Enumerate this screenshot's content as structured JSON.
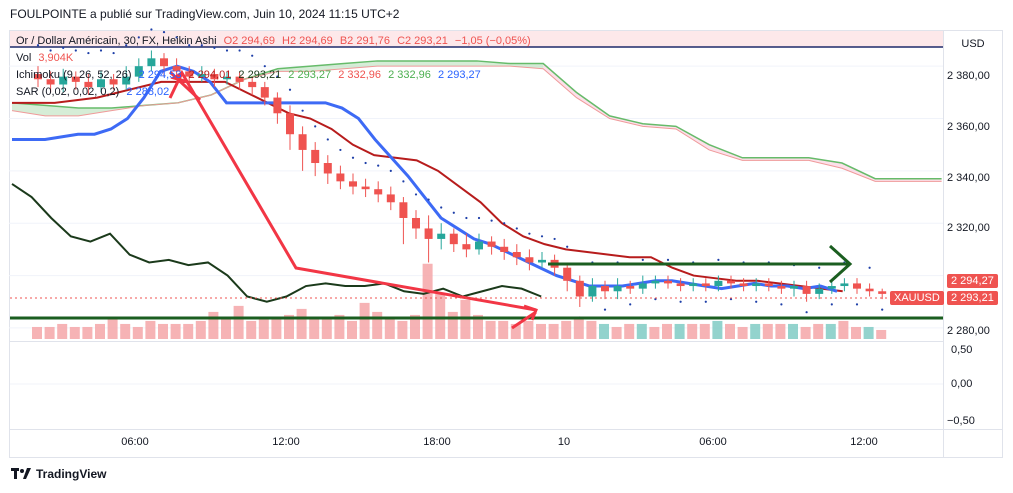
{
  "publisher_caption": "FOULPOINTE a publié sur TradingView.com, Juin 10, 2024 11:15 UTC+2",
  "currency": "USD",
  "legend": {
    "symbol": "Or / Dollar Américain, 30, FX, Heikin Ashi",
    "ohlc": {
      "o": "O2 294,69",
      "h": "H2 294,69",
      "b": "B2 291,76",
      "c": "C2 293,21",
      "chg": "−1,05 (−0,05%)"
    },
    "vol_label": "Vol",
    "vol_value": "3,904K",
    "ichimoku_label": "Ichimoku (9, 26, 52, 26)",
    "ichimoku_values": [
      "2 294,53",
      "2 294,01",
      "2 293,21",
      "2 293,27",
      "2 332,96",
      "2 332,96",
      "2 293,27"
    ],
    "sar_label": "SAR (0,02, 0,02, 0,2)",
    "sar_value": "2 288,02"
  },
  "price_axis": [
    "2 380,00",
    "2 360,00",
    "2 340,00",
    "2 320,00",
    "2 280,00"
  ],
  "osc_axis": [
    "0,50",
    "0,00",
    "−0,50"
  ],
  "last_price": {
    "symbol": "XAUUSD",
    "value": "2 293,21",
    "other": "2 294,27"
  },
  "time_axis": [
    "06:00",
    "12:00",
    "18:00",
    "10",
    "06:00",
    "12:00"
  ],
  "colors": {
    "bull": "#26a69a",
    "bear": "#ef5350",
    "tenkan": "#2962ff",
    "kijun": "#b71c1c",
    "lagging": "#1b3a1b",
    "cloud_up": "#a5d6a7",
    "cloud_dn": "#f8bbd0",
    "sar": "#1e3fa8",
    "annot_red": "#f23645",
    "annot_green": "#1b5e20"
  },
  "footer_brand": "TradingView",
  "chart_data": {
    "type": "candlestick",
    "ylim": [
      2275,
      2390
    ],
    "candles": [
      {
        "o": 2377,
        "c": 2375,
        "h": 2380,
        "l": 2372
      },
      {
        "o": 2375,
        "c": 2373,
        "h": 2378,
        "l": 2370
      },
      {
        "o": 2373,
        "c": 2376,
        "h": 2379,
        "l": 2370
      },
      {
        "o": 2376,
        "c": 2374,
        "h": 2378,
        "l": 2371
      },
      {
        "o": 2374,
        "c": 2372,
        "h": 2377,
        "l": 2369
      },
      {
        "o": 2372,
        "c": 2375,
        "h": 2378,
        "l": 2370
      },
      {
        "o": 2375,
        "c": 2373,
        "h": 2377,
        "l": 2371
      },
      {
        "o": 2373,
        "c": 2376,
        "h": 2380,
        "l": 2371
      },
      {
        "o": 2376,
        "c": 2380,
        "h": 2383,
        "l": 2374
      },
      {
        "o": 2380,
        "c": 2383,
        "h": 2386,
        "l": 2378
      },
      {
        "o": 2383,
        "c": 2380,
        "h": 2385,
        "l": 2376
      },
      {
        "o": 2380,
        "c": 2378,
        "h": 2383,
        "l": 2375
      },
      {
        "o": 2378,
        "c": 2376,
        "h": 2380,
        "l": 2373
      },
      {
        "o": 2376,
        "c": 2377,
        "h": 2380,
        "l": 2374
      },
      {
        "o": 2377,
        "c": 2375,
        "h": 2379,
        "l": 2372
      },
      {
        "o": 2375,
        "c": 2376,
        "h": 2378,
        "l": 2373
      },
      {
        "o": 2376,
        "c": 2374,
        "h": 2378,
        "l": 2371
      },
      {
        "o": 2374,
        "c": 2372,
        "h": 2376,
        "l": 2369
      },
      {
        "o": 2372,
        "c": 2368,
        "h": 2374,
        "l": 2365
      },
      {
        "o": 2368,
        "c": 2362,
        "h": 2370,
        "l": 2358
      },
      {
        "o": 2362,
        "c": 2354,
        "h": 2365,
        "l": 2348
      },
      {
        "o": 2354,
        "c": 2348,
        "h": 2357,
        "l": 2340
      },
      {
        "o": 2348,
        "c": 2343,
        "h": 2351,
        "l": 2338
      },
      {
        "o": 2343,
        "c": 2339,
        "h": 2346,
        "l": 2335
      },
      {
        "o": 2339,
        "c": 2336,
        "h": 2342,
        "l": 2333
      },
      {
        "o": 2336,
        "c": 2334,
        "h": 2339,
        "l": 2331
      },
      {
        "o": 2334,
        "c": 2333,
        "h": 2337,
        "l": 2330
      },
      {
        "o": 2333,
        "c": 2331,
        "h": 2336,
        "l": 2328
      },
      {
        "o": 2331,
        "c": 2328,
        "h": 2334,
        "l": 2325
      },
      {
        "o": 2328,
        "c": 2322,
        "h": 2330,
        "l": 2312
      },
      {
        "o": 2322,
        "c": 2318,
        "h": 2325,
        "l": 2314
      },
      {
        "o": 2318,
        "c": 2314,
        "h": 2323,
        "l": 2305
      },
      {
        "o": 2314,
        "c": 2316,
        "h": 2320,
        "l": 2310
      },
      {
        "o": 2316,
        "c": 2312,
        "h": 2318,
        "l": 2309
      },
      {
        "o": 2312,
        "c": 2310,
        "h": 2316,
        "l": 2307
      },
      {
        "o": 2310,
        "c": 2313,
        "h": 2316,
        "l": 2308
      },
      {
        "o": 2313,
        "c": 2311,
        "h": 2315,
        "l": 2308
      },
      {
        "o": 2311,
        "c": 2309,
        "h": 2314,
        "l": 2306
      },
      {
        "o": 2309,
        "c": 2307,
        "h": 2312,
        "l": 2304
      },
      {
        "o": 2307,
        "c": 2305,
        "h": 2310,
        "l": 2302
      },
      {
        "o": 2305,
        "c": 2306,
        "h": 2309,
        "l": 2303
      },
      {
        "o": 2306,
        "c": 2303,
        "h": 2308,
        "l": 2300
      },
      {
        "o": 2303,
        "c": 2298,
        "h": 2305,
        "l": 2294
      },
      {
        "o": 2298,
        "c": 2292,
        "h": 2300,
        "l": 2288
      },
      {
        "o": 2292,
        "c": 2296,
        "h": 2299,
        "l": 2290
      },
      {
        "o": 2296,
        "c": 2294,
        "h": 2298,
        "l": 2291
      },
      {
        "o": 2294,
        "c": 2296,
        "h": 2299,
        "l": 2291
      },
      {
        "o": 2296,
        "c": 2295,
        "h": 2298,
        "l": 2293
      },
      {
        "o": 2295,
        "c": 2297,
        "h": 2300,
        "l": 2293
      },
      {
        "o": 2297,
        "c": 2298,
        "h": 2300,
        "l": 2295
      },
      {
        "o": 2298,
        "c": 2297,
        "h": 2300,
        "l": 2295
      },
      {
        "o": 2297,
        "c": 2296,
        "h": 2299,
        "l": 2294
      },
      {
        "o": 2296,
        "c": 2297,
        "h": 2299,
        "l": 2294
      },
      {
        "o": 2297,
        "c": 2296,
        "h": 2299,
        "l": 2294
      },
      {
        "o": 2296,
        "c": 2298,
        "h": 2300,
        "l": 2294
      },
      {
        "o": 2298,
        "c": 2297,
        "h": 2300,
        "l": 2295
      },
      {
        "o": 2297,
        "c": 2296,
        "h": 2299,
        "l": 2294
      },
      {
        "o": 2296,
        "c": 2297,
        "h": 2299,
        "l": 2294
      },
      {
        "o": 2297,
        "c": 2296,
        "h": 2299,
        "l": 2294
      },
      {
        "o": 2296,
        "c": 2295,
        "h": 2298,
        "l": 2293
      },
      {
        "o": 2295,
        "c": 2296,
        "h": 2298,
        "l": 2292
      },
      {
        "o": 2296,
        "c": 2293,
        "h": 2298,
        "l": 2290
      },
      {
        "o": 2293,
        "c": 2295,
        "h": 2297,
        "l": 2291
      },
      {
        "o": 2295,
        "c": 2296,
        "h": 2298,
        "l": 2293
      },
      {
        "o": 2296,
        "c": 2297,
        "h": 2299,
        "l": 2294
      },
      {
        "o": 2297,
        "c": 2295,
        "h": 2299,
        "l": 2293
      },
      {
        "o": 2295,
        "c": 2294,
        "h": 2297,
        "l": 2292
      },
      {
        "o": 2294,
        "c": 2293,
        "h": 2295,
        "l": 2291
      }
    ],
    "tenkan": [
      2352,
      2352,
      2352,
      2353,
      2354,
      2354,
      2356,
      2360,
      2368,
      2378,
      2380,
      2378,
      2374,
      2366,
      2366,
      2366,
      2366,
      2366,
      2366,
      2366,
      2364,
      2360,
      2352,
      2345,
      2338,
      2330,
      2322,
      2318,
      2314,
      2312,
      2309,
      2306,
      2303,
      2300,
      2298,
      2296,
      2296,
      2296,
      2297,
      2298,
      2298,
      2297,
      2296,
      2295,
      2296,
      2297,
      2296,
      2296,
      2295,
      2296,
      2294
    ],
    "kijun": [
      2366,
      2366,
      2366,
      2367,
      2368,
      2370,
      2372,
      2374,
      2374,
      2374,
      2374,
      2370,
      2366,
      2362,
      2360,
      2356,
      2350,
      2346,
      2345,
      2344,
      2340,
      2334,
      2328,
      2320,
      2315,
      2312,
      2310,
      2309,
      2308,
      2307,
      2307,
      2303,
      2300,
      2299,
      2298,
      2298,
      2297,
      2296,
      2295,
      2294
    ],
    "lagging": [
      2335,
      2330,
      2322,
      2315,
      2313,
      2316,
      2308,
      2305,
      2306,
      2304,
      2305,
      2300,
      2292,
      2290,
      2292,
      2296,
      2297,
      2296,
      2296,
      2297,
      2294,
      2293,
      2295,
      2292,
      2294,
      2296,
      2295,
      2292
    ],
    "senkou_a": [
      2366,
      2365,
      2364,
      2364,
      2365,
      2366,
      2369,
      2375,
      2379,
      2380,
      2381,
      2382,
      2382,
      2382,
      2382,
      2381,
      2381,
      2370,
      2361,
      2358,
      2357,
      2350,
      2345,
      2345,
      2345,
      2343,
      2337,
      2337,
      2337
    ],
    "senkou_b": [
      2363,
      2361,
      2361,
      2363,
      2365,
      2366,
      2369,
      2375,
      2378,
      2378,
      2379,
      2380,
      2380,
      2380,
      2380,
      2380,
      2379,
      2368,
      2360,
      2357,
      2356,
      2348,
      2344,
      2344,
      2344,
      2341,
      2336,
      2336,
      2336
    ],
    "volume": [
      0.04,
      0.04,
      0.05,
      0.04,
      0.04,
      0.05,
      0.07,
      0.05,
      0.04,
      0.06,
      0.05,
      0.05,
      0.05,
      0.06,
      0.09,
      0.07,
      0.11,
      0.06,
      0.07,
      0.07,
      0.08,
      0.1,
      0.07,
      0.07,
      0.08,
      0.06,
      0.12,
      0.09,
      0.07,
      0.06,
      0.08,
      0.25,
      0.15,
      0.09,
      0.13,
      0.08,
      0.06,
      0.06,
      0.05,
      0.06,
      0.05,
      0.05,
      0.06,
      0.07,
      0.06,
      0.05,
      0.04,
      0.05,
      0.05,
      0.04,
      0.05,
      0.05,
      0.05,
      0.05,
      0.06,
      0.05,
      0.04,
      0.05,
      0.05,
      0.05,
      0.05,
      0.04,
      0.05,
      0.05,
      0.06,
      0.04,
      0.04,
      0.03
    ]
  }
}
